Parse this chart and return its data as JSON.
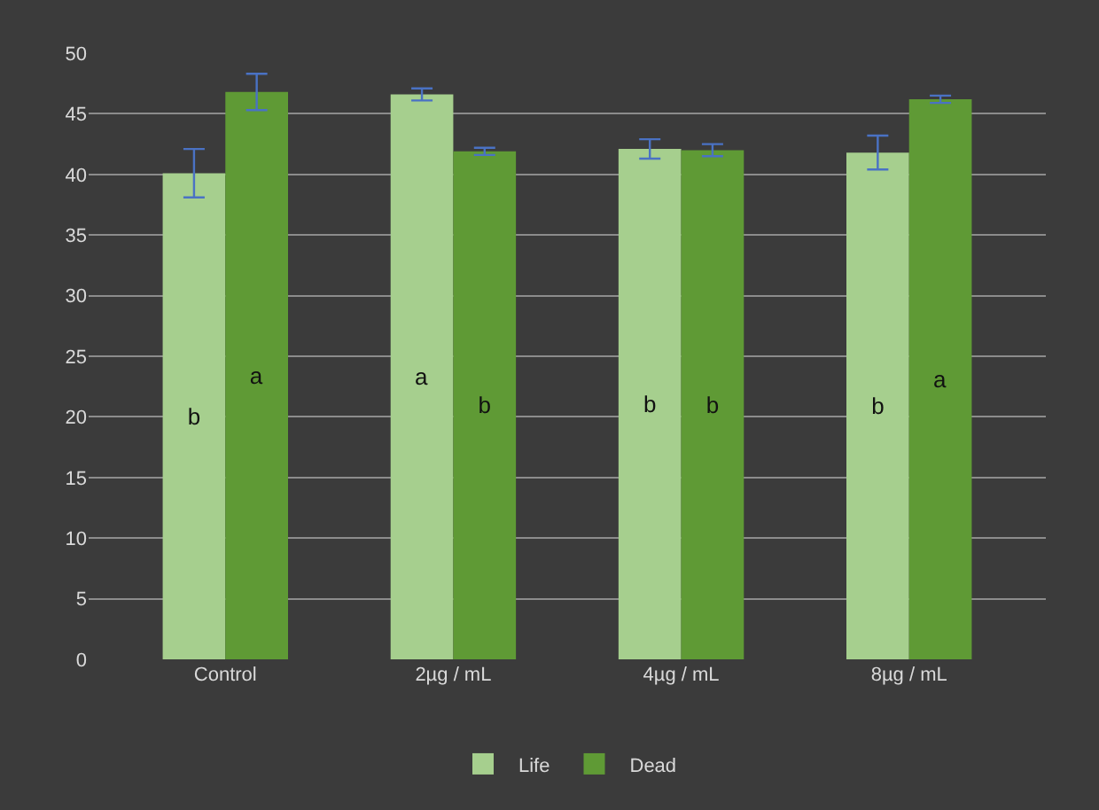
{
  "chart_data": {
    "type": "bar",
    "categories": [
      "Control",
      "2µg / mL",
      "4µg / mL",
      "8µg / mL"
    ],
    "series": [
      {
        "name": "Life",
        "color": "#a6cf8e",
        "values": [
          40.1,
          46.6,
          42.1,
          41.8
        ],
        "errors": [
          2,
          0.5,
          0.8,
          1.4
        ],
        "value_labels": [
          "b",
          "a",
          "b",
          "b"
        ]
      },
      {
        "name": "Dead",
        "color": "#5f9a35",
        "values": [
          46.8,
          41.9,
          42,
          46.2
        ],
        "errors": [
          1.5,
          0.3,
          0.5,
          0.3
        ],
        "value_labels": [
          "a",
          "b",
          "b",
          "a"
        ]
      }
    ],
    "ylim": [
      0,
      50
    ],
    "yticks": [
      0,
      5,
      10,
      15,
      20,
      25,
      30,
      35,
      40,
      45,
      50
    ],
    "grid": "y",
    "legend": "bottom"
  }
}
